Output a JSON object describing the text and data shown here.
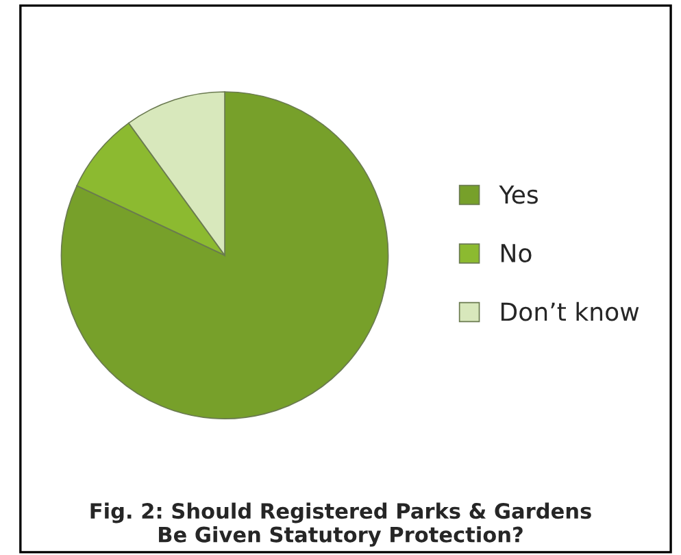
{
  "chart_data": {
    "type": "pie",
    "title": "Fig. 2: Should Registered Parks & Gardens\nBe Given Statutory Protection?",
    "categories": [
      "Yes",
      "No",
      "Don’t know"
    ],
    "values": [
      82,
      8,
      10
    ],
    "colors": [
      "#77a02a",
      "#8cba30",
      "#d8e8bc"
    ],
    "legend": "right"
  }
}
